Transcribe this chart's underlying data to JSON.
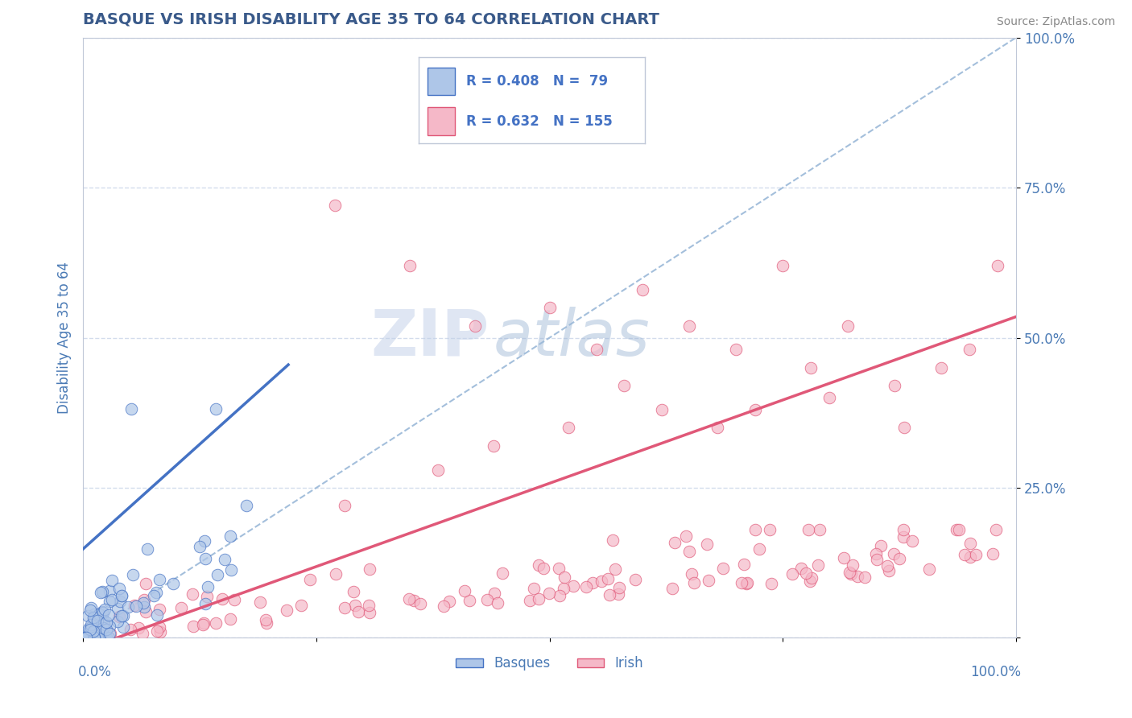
{
  "title": "BASQUE VS IRISH DISABILITY AGE 35 TO 64 CORRELATION CHART",
  "source": "Source: ZipAtlas.com",
  "ylabel": "Disability Age 35 to 64",
  "legend_basque_label": "Basques",
  "legend_irish_label": "Irish",
  "r_basque": 0.408,
  "n_basque": 79,
  "r_irish": 0.632,
  "n_irish": 155,
  "basque_color": "#aec6e8",
  "irish_color": "#f5b8c8",
  "basque_line_color": "#4472c4",
  "irish_line_color": "#e05878",
  "diagonal_color": "#9ab8d8",
  "title_color": "#3a5a8a",
  "tick_color": "#4a7ab5",
  "background_color": "#ffffff",
  "watermark_zip": "ZIP",
  "watermark_atlas": "atlas",
  "xlim": [
    0.0,
    1.0
  ],
  "ylim": [
    0.0,
    1.0
  ],
  "xticks": [
    0.0,
    0.25,
    0.5,
    0.75,
    1.0
  ],
  "yticks": [
    0.0,
    0.25,
    0.5,
    0.75,
    1.0
  ],
  "xticklabels_left": "0.0%",
  "xticklabels_right": "100.0%",
  "yticklabels": [
    "",
    "25.0%",
    "50.0%",
    "75.0%",
    "100.0%"
  ]
}
